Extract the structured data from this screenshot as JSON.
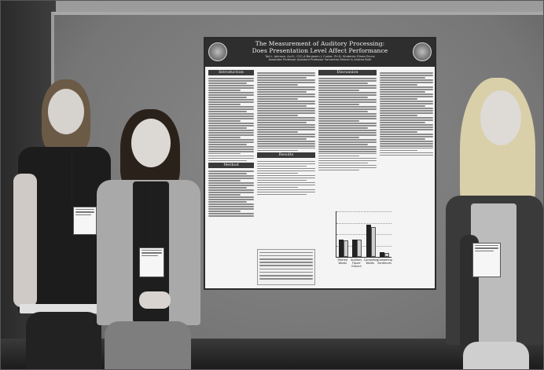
{
  "photo": {
    "kind": "photograph",
    "subjects": [
      "person-left",
      "person-center",
      "person-right"
    ]
  },
  "poster": {
    "title_line1": "The Measurement of Auditory Processing:",
    "title_line2": "Does Presentation Level Affect Performance",
    "authors": "Tod L. Johnson, Au.D., CCC-A    Benjamin J. Custer, Ph.D.    Students: Eileen Bruns\nAssociate Professor    Assistant Professor    Samantha Reimer  &  Andrea Roth",
    "sections": {
      "introduction": "Introduction",
      "method": "Method",
      "results": "Results",
      "discussion": "Discussion"
    },
    "colors": {
      "header": "#2e2e2e",
      "paper": "#f4f4f4"
    }
  },
  "chart_data": {
    "type": "bar",
    "categories": [
      "Filtered Words",
      "Auditory Figure Ground",
      "Competing Words",
      "Competing Sentences"
    ],
    "series": [
      {
        "values": [
          38,
          38,
          70,
          10
        ]
      },
      {
        "values": [
          36,
          38,
          66,
          8
        ]
      }
    ],
    "ylim": [
      0,
      100
    ],
    "grid": true
  }
}
